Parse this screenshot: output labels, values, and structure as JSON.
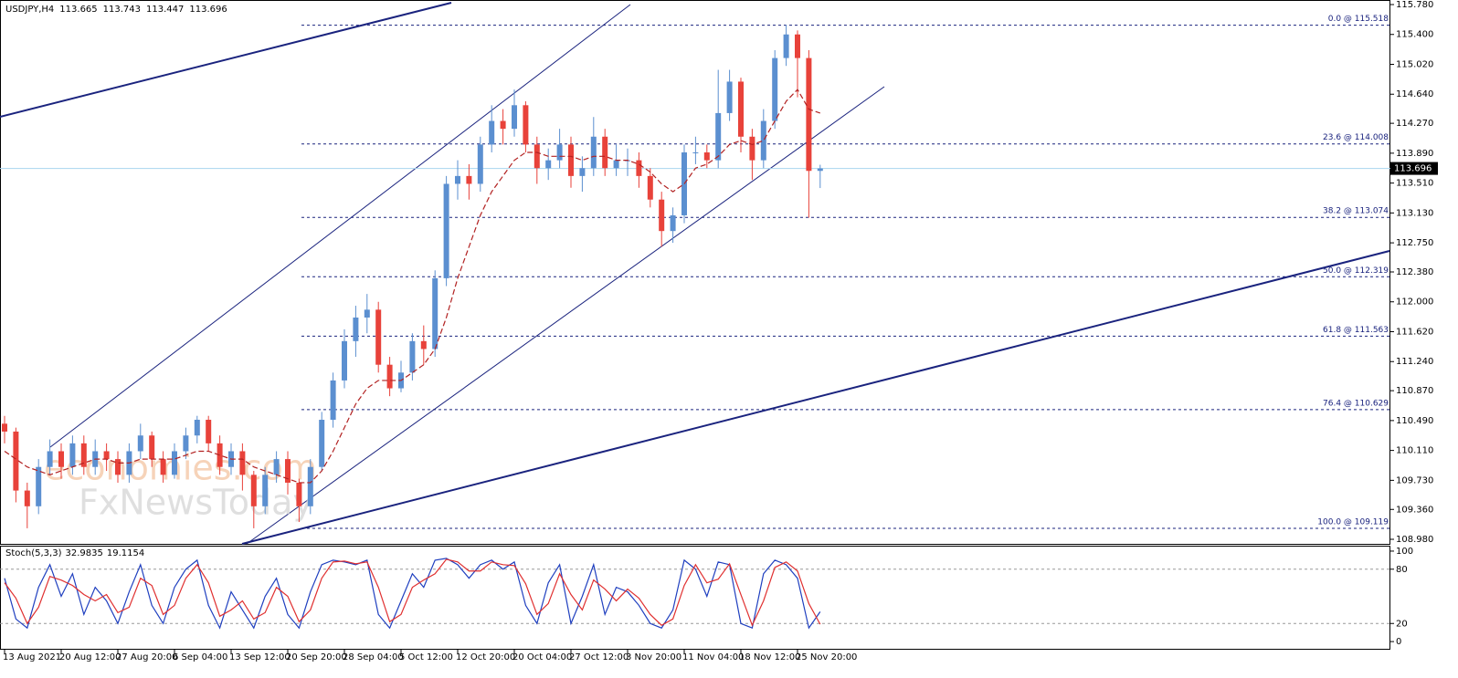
{
  "chart_data": [
    {
      "type": "candlestick",
      "title": "USDJPY,H4",
      "categories": [
        "13 Aug 2021",
        null,
        null,
        null,
        null,
        "20 Aug 12:00",
        null,
        null,
        null,
        null,
        "27 Aug 20:00",
        null,
        null,
        null,
        null,
        "6 Sep 04:00",
        null,
        null,
        null,
        null,
        "13 Sep 12:00",
        null,
        null,
        null,
        null,
        "20 Sep 20:00",
        null,
        null,
        null,
        null,
        "28 Sep 04:00",
        null,
        null,
        null,
        null,
        "5 Oct 12:00",
        null,
        null,
        null,
        null,
        "12 Oct 20:00",
        null,
        null,
        null,
        null,
        "20 Oct 04:00",
        null,
        null,
        null,
        null,
        "27 Oct 12:00",
        null,
        null,
        null,
        null,
        "3 Nov 20:00",
        null,
        null,
        null,
        null,
        "11 Nov 04:00",
        null,
        null,
        null,
        null,
        "18 Nov 12:00",
        null,
        null,
        null,
        null,
        "25 Nov 20:00",
        null,
        null
      ],
      "open": [
        110.45,
        110.35,
        109.6,
        109.4,
        109.9,
        110.1,
        109.9,
        110.2,
        109.9,
        110.1,
        110.0,
        109.8,
        110.1,
        110.3,
        110.0,
        109.8,
        110.1,
        110.3,
        110.5,
        110.2,
        109.9,
        110.1,
        109.8,
        109.4,
        109.8,
        110.0,
        109.7,
        109.4,
        109.9,
        110.5,
        111.0,
        111.5,
        111.8,
        111.9,
        111.2,
        110.9,
        111.1,
        111.5,
        111.4,
        112.3,
        113.5,
        113.6,
        113.5,
        114.0,
        114.3,
        114.2,
        114.5,
        114.0,
        113.7,
        113.8,
        114.0,
        113.6,
        113.7,
        114.1,
        113.7,
        113.8,
        113.8,
        113.6,
        113.3,
        112.9,
        113.1,
        113.9,
        113.9,
        113.8,
        114.4,
        114.8,
        114.1,
        113.8,
        114.3,
        115.1,
        115.4,
        115.1,
        113.665
      ],
      "high": [
        110.55,
        110.4,
        109.7,
        110.0,
        110.25,
        110.2,
        110.3,
        110.3,
        110.25,
        110.2,
        110.1,
        110.2,
        110.45,
        110.35,
        110.1,
        110.2,
        110.4,
        110.55,
        110.55,
        110.3,
        110.2,
        110.2,
        109.85,
        109.9,
        110.1,
        110.1,
        109.75,
        110.0,
        110.6,
        111.1,
        111.65,
        111.95,
        112.1,
        112.0,
        111.3,
        111.25,
        111.6,
        111.7,
        112.4,
        113.6,
        113.8,
        113.75,
        114.1,
        114.5,
        114.45,
        114.7,
        114.55,
        114.1,
        113.95,
        114.2,
        114.1,
        113.85,
        114.35,
        114.2,
        114.0,
        113.95,
        113.9,
        113.7,
        113.4,
        113.2,
        114.0,
        114.1,
        114.0,
        114.95,
        114.95,
        114.85,
        114.2,
        114.45,
        115.2,
        115.52,
        115.45,
        115.2,
        113.743
      ],
      "low": [
        110.2,
        109.45,
        109.12,
        109.3,
        109.8,
        109.75,
        109.8,
        109.8,
        109.8,
        109.85,
        109.7,
        109.7,
        110.0,
        109.9,
        109.7,
        109.75,
        110.0,
        110.2,
        110.1,
        109.8,
        109.8,
        109.6,
        109.12,
        109.3,
        109.7,
        109.55,
        109.2,
        109.3,
        109.85,
        110.4,
        110.9,
        111.3,
        111.6,
        111.1,
        110.8,
        110.85,
        111.0,
        111.2,
        111.3,
        112.2,
        113.3,
        113.3,
        113.4,
        113.9,
        114.0,
        114.1,
        113.9,
        113.5,
        113.55,
        113.7,
        113.45,
        113.4,
        113.6,
        113.6,
        113.6,
        113.6,
        113.45,
        113.2,
        112.7,
        112.75,
        113.0,
        113.75,
        113.7,
        113.7,
        114.3,
        113.9,
        113.55,
        113.7,
        114.2,
        115.0,
        114.6,
        113.07,
        113.447
      ],
      "close": [
        110.35,
        109.6,
        109.4,
        109.9,
        110.1,
        109.9,
        110.2,
        109.9,
        110.1,
        110.0,
        109.8,
        110.1,
        110.3,
        110.0,
        109.8,
        110.1,
        110.3,
        110.5,
        110.2,
        109.9,
        110.1,
        109.8,
        109.4,
        109.8,
        110.0,
        109.7,
        109.4,
        109.9,
        110.5,
        111.0,
        111.5,
        111.8,
        111.9,
        111.2,
        110.9,
        111.1,
        111.5,
        111.4,
        112.3,
        113.5,
        113.6,
        113.5,
        114.0,
        114.3,
        114.2,
        114.5,
        114.0,
        113.7,
        113.8,
        114.0,
        113.6,
        113.7,
        114.1,
        113.7,
        113.8,
        113.8,
        113.6,
        113.3,
        112.9,
        113.1,
        113.9,
        113.9,
        113.8,
        114.4,
        114.8,
        114.1,
        113.8,
        114.3,
        115.1,
        115.4,
        115.1,
        113.665,
        113.696
      ],
      "up_color": "#5b8fd0",
      "down_color": "#e8423a",
      "moving_average": {
        "color": "#b22222",
        "values": [
          110.1,
          110.0,
          109.9,
          109.85,
          109.8,
          109.85,
          109.9,
          109.95,
          110.0,
          110.0,
          109.95,
          109.95,
          110.0,
          110.0,
          110.0,
          110.0,
          110.05,
          110.1,
          110.1,
          110.05,
          110.0,
          110.0,
          109.9,
          109.85,
          109.8,
          109.75,
          109.7,
          109.7,
          109.85,
          110.1,
          110.4,
          110.7,
          110.9,
          111.0,
          111.0,
          111.0,
          111.1,
          111.2,
          111.4,
          111.8,
          112.3,
          112.7,
          113.1,
          113.4,
          113.6,
          113.8,
          113.9,
          113.9,
          113.85,
          113.85,
          113.85,
          113.8,
          113.85,
          113.85,
          113.8,
          113.8,
          113.75,
          113.65,
          113.5,
          113.4,
          113.5,
          113.7,
          113.75,
          113.85,
          114.0,
          114.05,
          114.0,
          114.05,
          114.3,
          114.55,
          114.7,
          114.45,
          114.4
        ]
      },
      "ylim": [
        108.922,
        115.838
      ],
      "yticks": [
        {
          "value": 115.78,
          "label": "115.780"
        },
        {
          "value": 115.4,
          "label": "115.400"
        },
        {
          "value": 115.02,
          "label": "115.020"
        },
        {
          "value": 114.64,
          "label": "114.640"
        },
        {
          "value": 114.27,
          "label": "114.270"
        },
        {
          "value": 113.89,
          "label": "113.890"
        },
        {
          "value": 113.51,
          "label": "113.510"
        },
        {
          "value": 113.13,
          "label": "113.130"
        },
        {
          "value": 112.75,
          "label": "112.750"
        },
        {
          "value": 112.38,
          "label": "112.380"
        },
        {
          "value": 112.0,
          "label": "112.000"
        },
        {
          "value": 111.62,
          "label": "111.620"
        },
        {
          "value": 111.24,
          "label": "111.240"
        },
        {
          "value": 110.87,
          "label": "110.870"
        },
        {
          "value": 110.49,
          "label": "110.490"
        },
        {
          "value": 110.11,
          "label": "110.110"
        },
        {
          "value": 109.73,
          "label": "109.730"
        },
        {
          "value": 109.36,
          "label": "109.360"
        },
        {
          "value": 108.98,
          "label": "108.980"
        }
      ],
      "fib_levels": [
        {
          "value": 115.518,
          "label": "0.0 @ 115.518"
        },
        {
          "value": 114.008,
          "label": "23.6 @ 114.008"
        },
        {
          "value": 113.074,
          "label": "38.2 @ 113.074"
        },
        {
          "value": 112.319,
          "label": "50.0 @ 112.319"
        },
        {
          "value": 111.563,
          "label": "61.8 @ 111.563"
        },
        {
          "value": 110.629,
          "label": "76.4 @ 110.629"
        },
        {
          "value": 109.119,
          "label": "100.0 @ 109.119"
        }
      ],
      "fib_color": "#1a237e",
      "price_line_color": "#a8d4ee",
      "watermark": [
        "economies.com",
        "FxNewsToday"
      ]
    },
    {
      "type": "line",
      "title": "Stoch(5,3,3)",
      "series": [
        {
          "color": "#1f3fbf",
          "values": [
            70,
            25,
            15,
            60,
            85,
            50,
            75,
            30,
            60,
            45,
            20,
            55,
            85,
            40,
            20,
            60,
            80,
            90,
            40,
            15,
            55,
            35,
            15,
            50,
            70,
            30,
            15,
            55,
            85,
            90,
            88,
            85,
            90,
            30,
            15,
            45,
            75,
            60,
            90,
            92,
            85,
            70,
            85,
            90,
            80,
            88,
            40,
            20,
            65,
            85,
            20,
            50,
            85,
            30,
            60,
            55,
            40,
            20,
            15,
            35,
            90,
            80,
            50,
            88,
            85,
            20,
            15,
            75,
            90,
            85,
            70,
            15,
            32.9835
          ]
        },
        {
          "color": "#e03030",
          "values": [
            65,
            48,
            20,
            38,
            72,
            68,
            62,
            52,
            45,
            52,
            32,
            38,
            70,
            62,
            30,
            40,
            70,
            85,
            65,
            28,
            35,
            45,
            25,
            32,
            60,
            50,
            22,
            35,
            70,
            88,
            89,
            86,
            88,
            60,
            22,
            30,
            60,
            68,
            75,
            91,
            88,
            78,
            78,
            88,
            85,
            84,
            64,
            30,
            42,
            75,
            52,
            35,
            68,
            58,
            45,
            58,
            48,
            30,
            18,
            25,
            62,
            85,
            65,
            69,
            86,
            52,
            18,
            45,
            82,
            88,
            78,
            42,
            19.1154
          ]
        }
      ],
      "ylim": [
        -9,
        106
      ],
      "yticks": [
        0,
        20,
        80,
        100
      ],
      "levels": [
        20,
        80
      ]
    }
  ]
}
